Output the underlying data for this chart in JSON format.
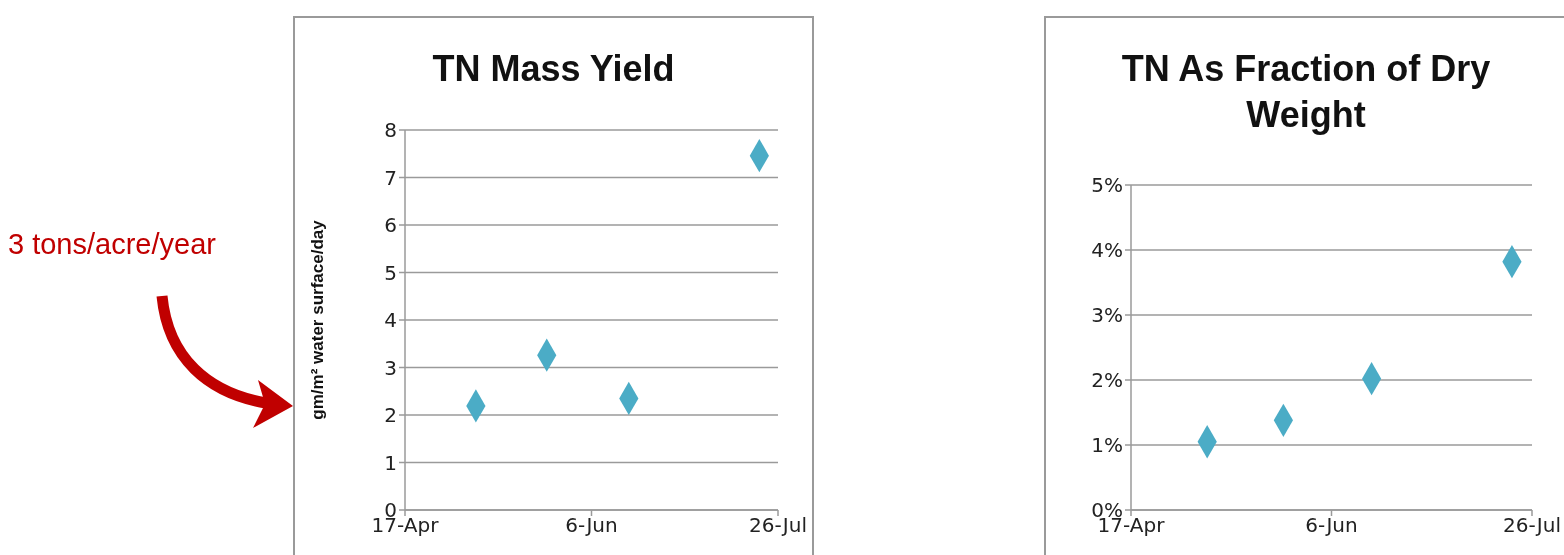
{
  "chart_data": [
    {
      "type": "scatter",
      "title": "TN Mass Yield",
      "ylabel": "gm/m² water surface/day",
      "x": [
        "--05-06",
        "--05-25",
        "--06-16",
        "--07-21"
      ],
      "values": [
        2.19,
        3.26,
        2.35,
        7.46
      ],
      "color": "#4bacc6",
      "marker": "diamond",
      "xlim": [
        "--04-17",
        "--07-26"
      ],
      "xticks": [
        {
          "value": "--04-17",
          "label": "17-Apr"
        },
        {
          "value": "--06-06",
          "label": "6-Jun"
        },
        {
          "value": "--07-26",
          "label": "26-Jul"
        }
      ],
      "ylim": [
        0,
        8
      ],
      "yticks": [
        0,
        1,
        2,
        3,
        4,
        5,
        6,
        7,
        8
      ],
      "grid": "y",
      "annotations": [
        "3 tons/acre/year"
      ]
    },
    {
      "type": "scatter",
      "title": "TN As Fraction of Dry Weight",
      "x": [
        "--05-06",
        "--05-25",
        "--06-16",
        "--07-21"
      ],
      "values": [
        1.05,
        1.38,
        2.02,
        3.82
      ],
      "color": "#4bacc6",
      "marker": "diamond",
      "xlim": [
        "--04-17",
        "--07-26"
      ],
      "xticks": [
        {
          "value": "--04-17",
          "label": "17-Apr"
        },
        {
          "value": "--06-06",
          "label": "6-Jun"
        },
        {
          "value": "--07-26",
          "label": "26-Jul"
        }
      ],
      "ylim": [
        0,
        5
      ],
      "yticks": [
        {
          "value": 0,
          "label": "0%"
        },
        {
          "value": 1,
          "label": "1%"
        },
        {
          "value": 2,
          "label": "2%"
        },
        {
          "value": 3,
          "label": "3%"
        },
        {
          "value": 4,
          "label": "4%"
        },
        {
          "value": 5,
          "label": "5%"
        }
      ],
      "grid": "y"
    }
  ]
}
